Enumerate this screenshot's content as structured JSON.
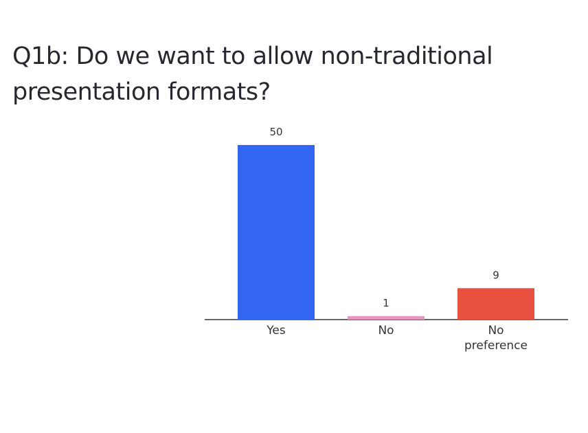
{
  "chart_data": {
    "type": "bar",
    "title": "Q1b: Do we want to allow non-traditional presentation formats?",
    "categories": [
      "Yes",
      "No",
      "No preference"
    ],
    "values": [
      50,
      1,
      9
    ],
    "colors": [
      "#3366f0",
      "#e596bd",
      "#e8503f"
    ]
  }
}
